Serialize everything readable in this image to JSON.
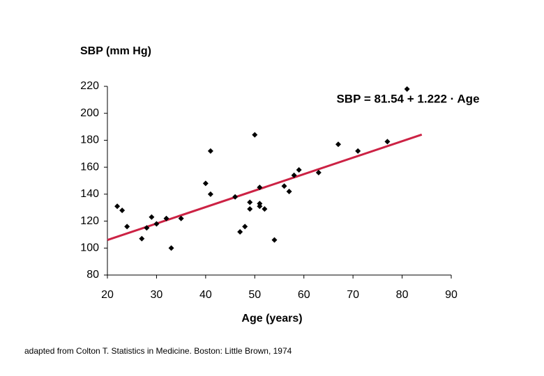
{
  "chart_data": {
    "type": "scatter",
    "y_label": "SBP (mm Hg)",
    "x_label": "Age (years)",
    "annotation": "SBP = 81.54 + 1.222 · Age",
    "source": "adapted from Colton T. Statistics in Medicine. Boston: Little Brown, 1974",
    "x": [
      22,
      23,
      24,
      27,
      28,
      29,
      30,
      32,
      33,
      35,
      40,
      41,
      41,
      46,
      47,
      48,
      49,
      49,
      50,
      51,
      51,
      51,
      52,
      54,
      56,
      57,
      58,
      59,
      63,
      67,
      71,
      77,
      81
    ],
    "values": [
      131,
      128,
      116,
      107,
      115,
      123,
      118,
      122,
      100,
      122,
      148,
      172,
      140,
      138,
      112,
      116,
      134,
      129,
      184,
      145,
      133,
      131,
      129,
      106,
      146,
      142,
      154,
      158,
      156,
      177,
      172,
      179,
      218
    ],
    "color": "#000000",
    "fit": {
      "intercept": 81.54,
      "slope": 1.222,
      "x_range": [
        20,
        84
      ],
      "color": "#cc2244"
    },
    "xlim": [
      20,
      90
    ],
    "xticks": [
      20,
      30,
      40,
      50,
      60,
      70,
      80,
      90
    ],
    "ylim": [
      80,
      220
    ],
    "yticks": [
      80,
      100,
      120,
      140,
      160,
      180,
      200,
      220
    ],
    "grid": false
  }
}
